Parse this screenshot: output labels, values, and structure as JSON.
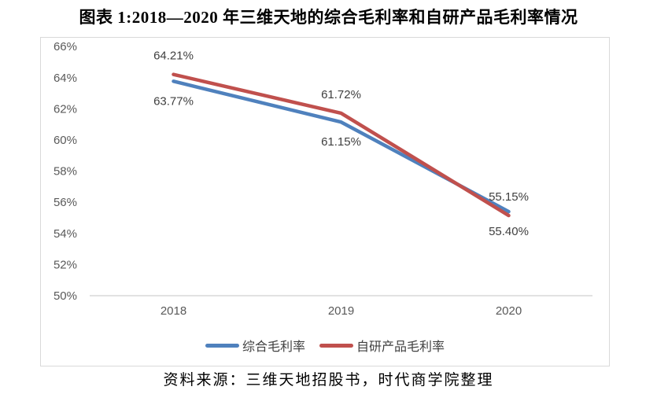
{
  "figure": {
    "title": "图表 1:2018—2020 年三维天地的综合毛利率和自研产品毛利率情况",
    "source_note": "资料来源：三维天地招股书，时代商学院整理"
  },
  "chart_data": {
    "type": "line",
    "categories": [
      "2018",
      "2019",
      "2020"
    ],
    "series": [
      {
        "name": "综合毛利率",
        "color": "#4F81BD",
        "values": [
          63.77,
          61.15,
          55.4
        ],
        "data_labels": [
          "63.77%",
          "61.15%",
          "55.40%"
        ],
        "label_position": "below"
      },
      {
        "name": "自研产品毛利率",
        "color": "#C0504D",
        "values": [
          64.21,
          61.72,
          55.15
        ],
        "data_labels": [
          "64.21%",
          "61.72%",
          "55.15%"
        ],
        "label_position": "above"
      }
    ],
    "ylim": [
      50,
      66
    ],
    "ytick_step": 2,
    "ytick_labels": [
      "50%",
      "52%",
      "54%",
      "56%",
      "58%",
      "60%",
      "62%",
      "64%",
      "66%"
    ],
    "grid": false,
    "legend_position": "bottom",
    "axis_color": "#D9D9D9",
    "tick_text_color": "#595959",
    "data_label_color": "#3F3F3F"
  }
}
